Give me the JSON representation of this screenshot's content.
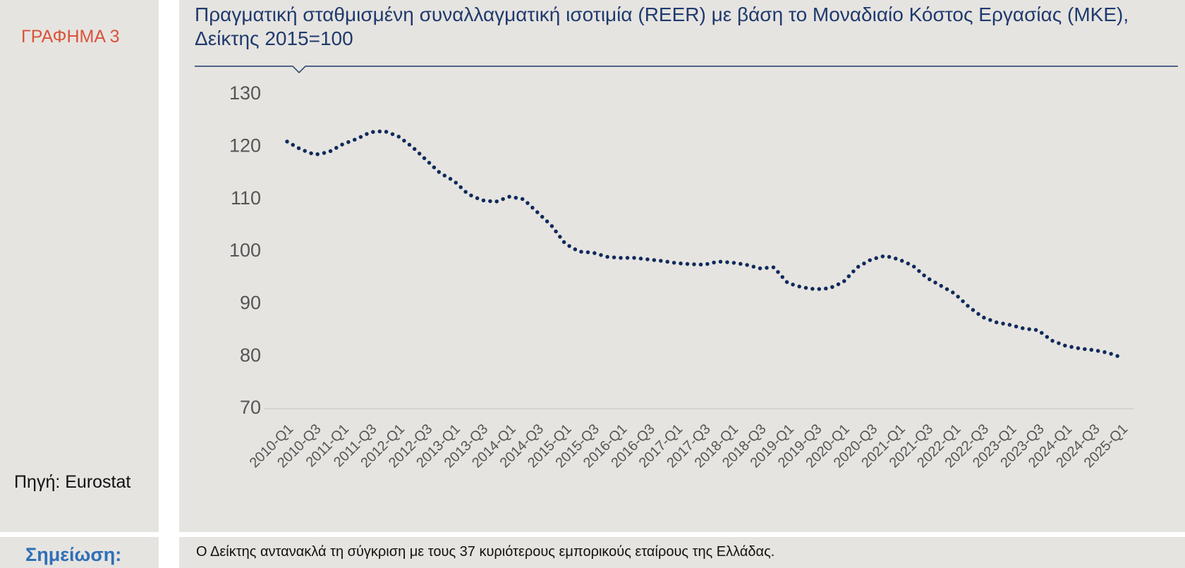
{
  "header": {
    "label": "ΓΡΑΦΗΜΑ 3",
    "source": "Πηγή: Eurostat"
  },
  "note": {
    "label": "Σημείωση:",
    "text": "Ο Δείκτης αντανακλά τη σύγκριση με τους 37 κυριότερους εμπορικούς εταίρους της Ελλάδας."
  },
  "chart_data": {
    "type": "line",
    "title": "Πραγματική σταθμισμένη συναλλαγματική ισοτιμία (REER) με βάση το Μοναδιαίο Κόστος Εργασίας (ΜΚΕ), Δείκτης 2015=100",
    "categories": [
      "2010-Q1",
      null,
      "2010-Q3",
      null,
      "2011-Q1",
      null,
      "2011-Q3",
      null,
      "2012-Q1",
      null,
      "2012-Q3",
      null,
      "2013-Q1",
      null,
      "2013-Q3",
      null,
      "2014-Q1",
      null,
      "2014-Q3",
      null,
      "2015-Q1",
      null,
      "2015-Q3",
      null,
      "2016-Q1",
      null,
      "2016-Q3",
      null,
      "2017-Q1",
      null,
      "2017-Q3",
      null,
      "2018-Q1",
      null,
      "2018-Q3",
      null,
      "2019-Q1",
      null,
      "2019-Q3",
      null,
      "2020-Q1",
      null,
      "2020-Q3",
      null,
      "2021-Q1",
      null,
      "2021-Q3",
      null,
      "2022-Q1",
      null,
      "2022-Q3",
      null,
      "2023-Q1",
      null,
      "2023-Q3",
      null,
      "2024-Q1",
      null,
      "2024-Q3",
      null,
      "2025-Q1"
    ],
    "series": [
      {
        "name": "REER",
        "color": "#0f2a5c",
        "values": [
          121,
          119.5,
          118.5,
          119,
          120.5,
          121.5,
          122.8,
          123,
          122,
          120,
          117.5,
          115,
          113.5,
          111,
          109.8,
          109.5,
          110.5,
          110,
          107.5,
          105,
          101.5,
          100,
          99.8,
          99,
          98.8,
          98.8,
          98.5,
          98.2,
          97.8,
          97.6,
          97.5,
          98.1,
          97.9,
          97.5,
          96.8,
          97,
          94,
          93.2,
          92.8,
          93,
          94.2,
          97,
          98.5,
          99.2,
          98.5,
          97.3,
          95,
          93.5,
          92,
          89.5,
          87.5,
          86.5,
          86,
          85.3,
          85,
          83,
          82,
          81.5,
          81.2,
          80.7,
          79.8
        ]
      }
    ],
    "ylim": [
      70,
      130
    ],
    "yticks": [
      70,
      80,
      90,
      100,
      110,
      120,
      130
    ],
    "grid": false
  }
}
